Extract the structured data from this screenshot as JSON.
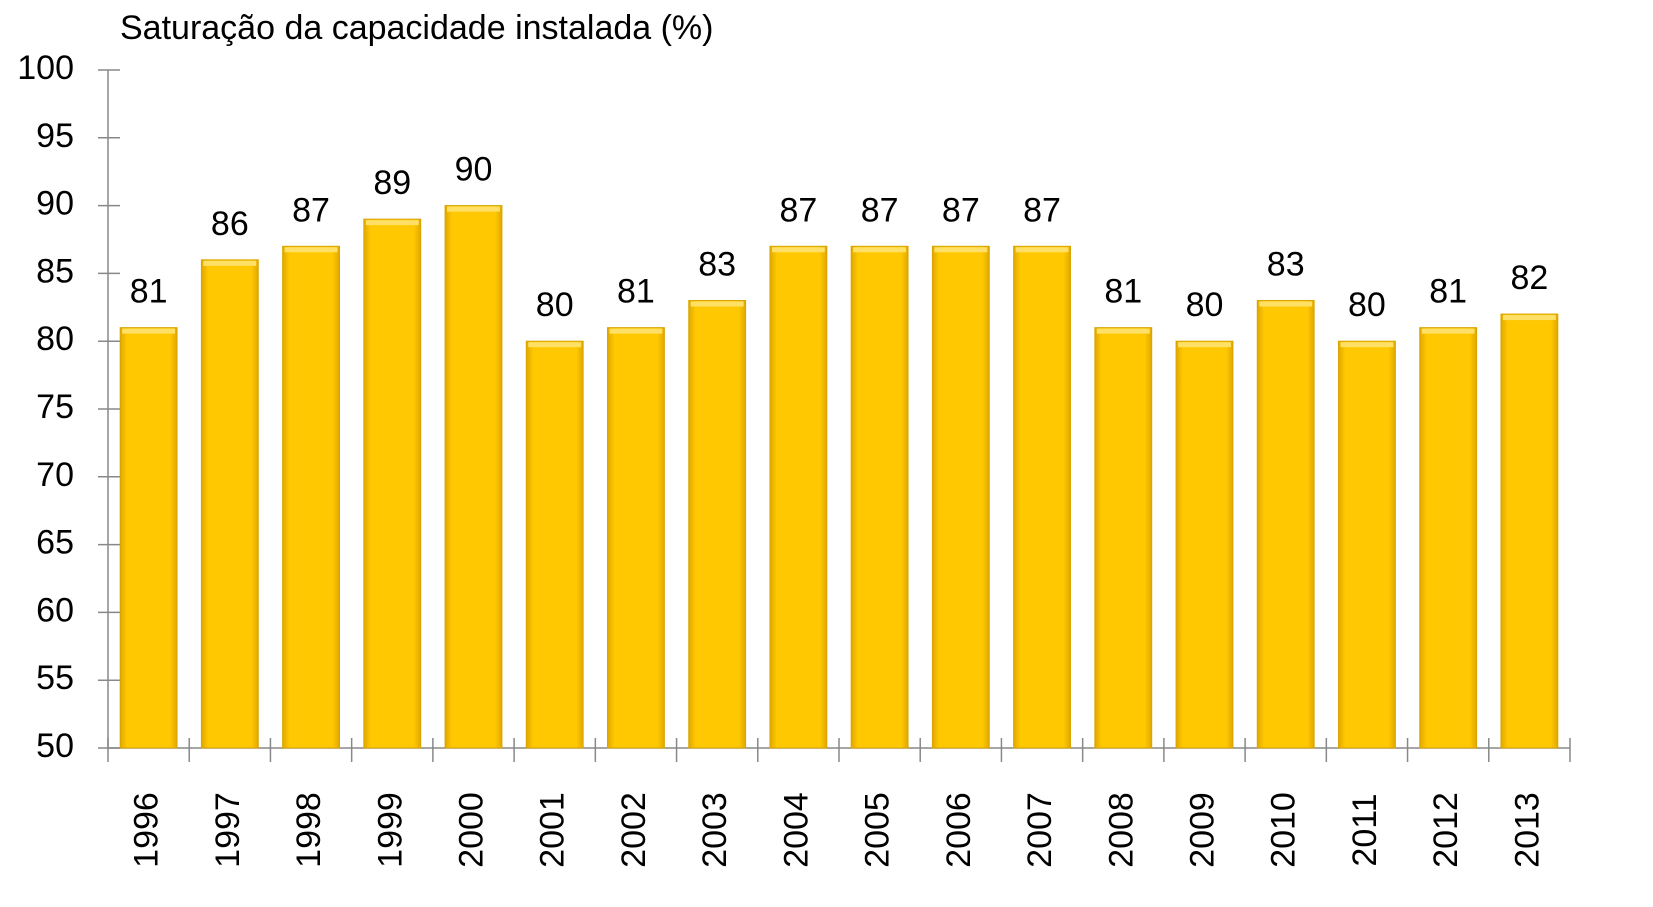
{
  "chart_data": {
    "type": "bar",
    "title": "Saturação da capacidade instalada (%)",
    "categories": [
      "1996",
      "1997",
      "1998",
      "1999",
      "2000",
      "2001",
      "2002",
      "2003",
      "2004",
      "2005",
      "2006",
      "2007",
      "2008",
      "2009",
      "2010",
      "2011",
      "2012",
      "2013"
    ],
    "values": [
      81,
      86,
      87,
      89,
      90,
      80,
      81,
      83,
      87,
      87,
      87,
      87,
      81,
      80,
      83,
      80,
      81,
      82
    ],
    "color": "#FFC800",
    "ylim": [
      50,
      100
    ],
    "yticks": [
      50,
      55,
      60,
      65,
      70,
      75,
      80,
      85,
      90,
      95,
      100
    ],
    "grid": false
  }
}
